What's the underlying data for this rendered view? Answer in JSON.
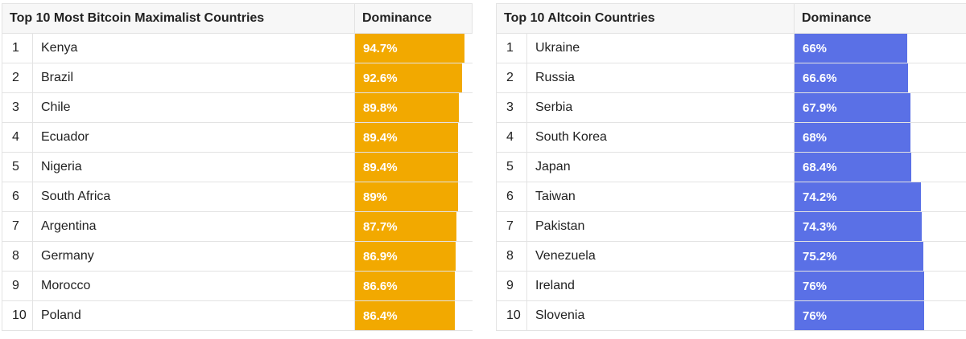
{
  "chart_data": [
    {
      "type": "table",
      "headers": [
        "",
        "Top 10 Most Bitcoin Maximalist Countries",
        "Dominance"
      ],
      "bar_color": "#f2a900",
      "rows": [
        {
          "rank": "1",
          "country": "Kenya",
          "value": 94.7,
          "label": "94.7%"
        },
        {
          "rank": "2",
          "country": "Brazil",
          "value": 92.6,
          "label": "92.6%"
        },
        {
          "rank": "3",
          "country": "Chile",
          "value": 89.8,
          "label": "89.8%"
        },
        {
          "rank": "4",
          "country": "Ecuador",
          "value": 89.4,
          "label": "89.4%"
        },
        {
          "rank": "5",
          "country": "Nigeria",
          "value": 89.4,
          "label": "89.4%"
        },
        {
          "rank": "6",
          "country": "South Africa",
          "value": 89,
          "label": "89%"
        },
        {
          "rank": "7",
          "country": "Argentina",
          "value": 87.7,
          "label": "87.7%"
        },
        {
          "rank": "8",
          "country": "Germany",
          "value": 86.9,
          "label": "86.9%"
        },
        {
          "rank": "9",
          "country": "Morocco",
          "value": 86.6,
          "label": "86.6%"
        },
        {
          "rank": "10",
          "country": "Poland",
          "value": 86.4,
          "label": "86.4%"
        }
      ]
    },
    {
      "type": "table",
      "headers": [
        "",
        "Top 10 Altcoin Countries",
        "Dominance"
      ],
      "bar_color": "#5a70e6",
      "rows": [
        {
          "rank": "1",
          "country": "Ukraine",
          "value": 66,
          "label": "66%"
        },
        {
          "rank": "2",
          "country": "Russia",
          "value": 66.6,
          "label": "66.6%"
        },
        {
          "rank": "3",
          "country": "Serbia",
          "value": 67.9,
          "label": "67.9%"
        },
        {
          "rank": "4",
          "country": "South Korea",
          "value": 68,
          "label": "68%"
        },
        {
          "rank": "5",
          "country": "Japan",
          "value": 68.4,
          "label": "68.4%"
        },
        {
          "rank": "6",
          "country": "Taiwan",
          "value": 74.2,
          "label": "74.2%"
        },
        {
          "rank": "7",
          "country": "Pakistan",
          "value": 74.3,
          "label": "74.3%"
        },
        {
          "rank": "8",
          "country": "Venezuela",
          "value": 75.2,
          "label": "75.2%"
        },
        {
          "rank": "9",
          "country": "Ireland",
          "value": 76,
          "label": "76%"
        },
        {
          "rank": "10",
          "country": "Slovenia",
          "value": 76,
          "label": "76%"
        }
      ]
    }
  ]
}
